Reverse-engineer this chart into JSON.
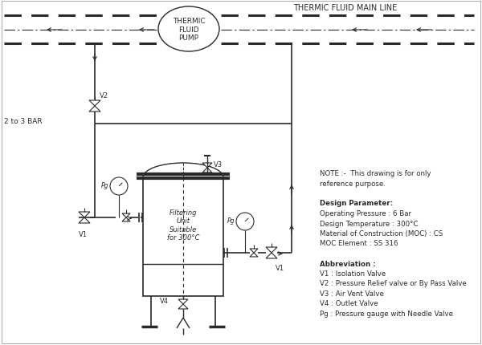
{
  "bg_color": "#ffffff",
  "line_color": "#2a2a2a",
  "note_lines": [
    [
      "NOTE :-  This drawing is for only",
      false
    ],
    [
      "reference purpose.",
      false
    ],
    [
      "",
      false
    ],
    [
      "Design Parameter:",
      true
    ],
    [
      "Operating Pressure : 6 Bar",
      false
    ],
    [
      "Design Temperature : 300°C",
      false
    ],
    [
      "Material of Construction (MOC) : CS",
      false
    ],
    [
      "MOC Element : SS 316",
      false
    ],
    [
      "",
      false
    ],
    [
      "Abbreviation :",
      true
    ],
    [
      "V1 : Isolation Valve",
      false
    ],
    [
      "V2 : Pressure Relief valve or By Pass Valve",
      false
    ],
    [
      "V3 : Air Vent Valve",
      false
    ],
    [
      "V4 : Outlet Valve",
      false
    ],
    [
      "Pg : Pressure gauge with Needle Valve",
      false
    ]
  ],
  "pump_label": "THERMIC\nFLUID\nPUMP",
  "main_line_label": "THERMIC FLUID MAIN LINE",
  "bar_label": "2 to 3 BAR"
}
